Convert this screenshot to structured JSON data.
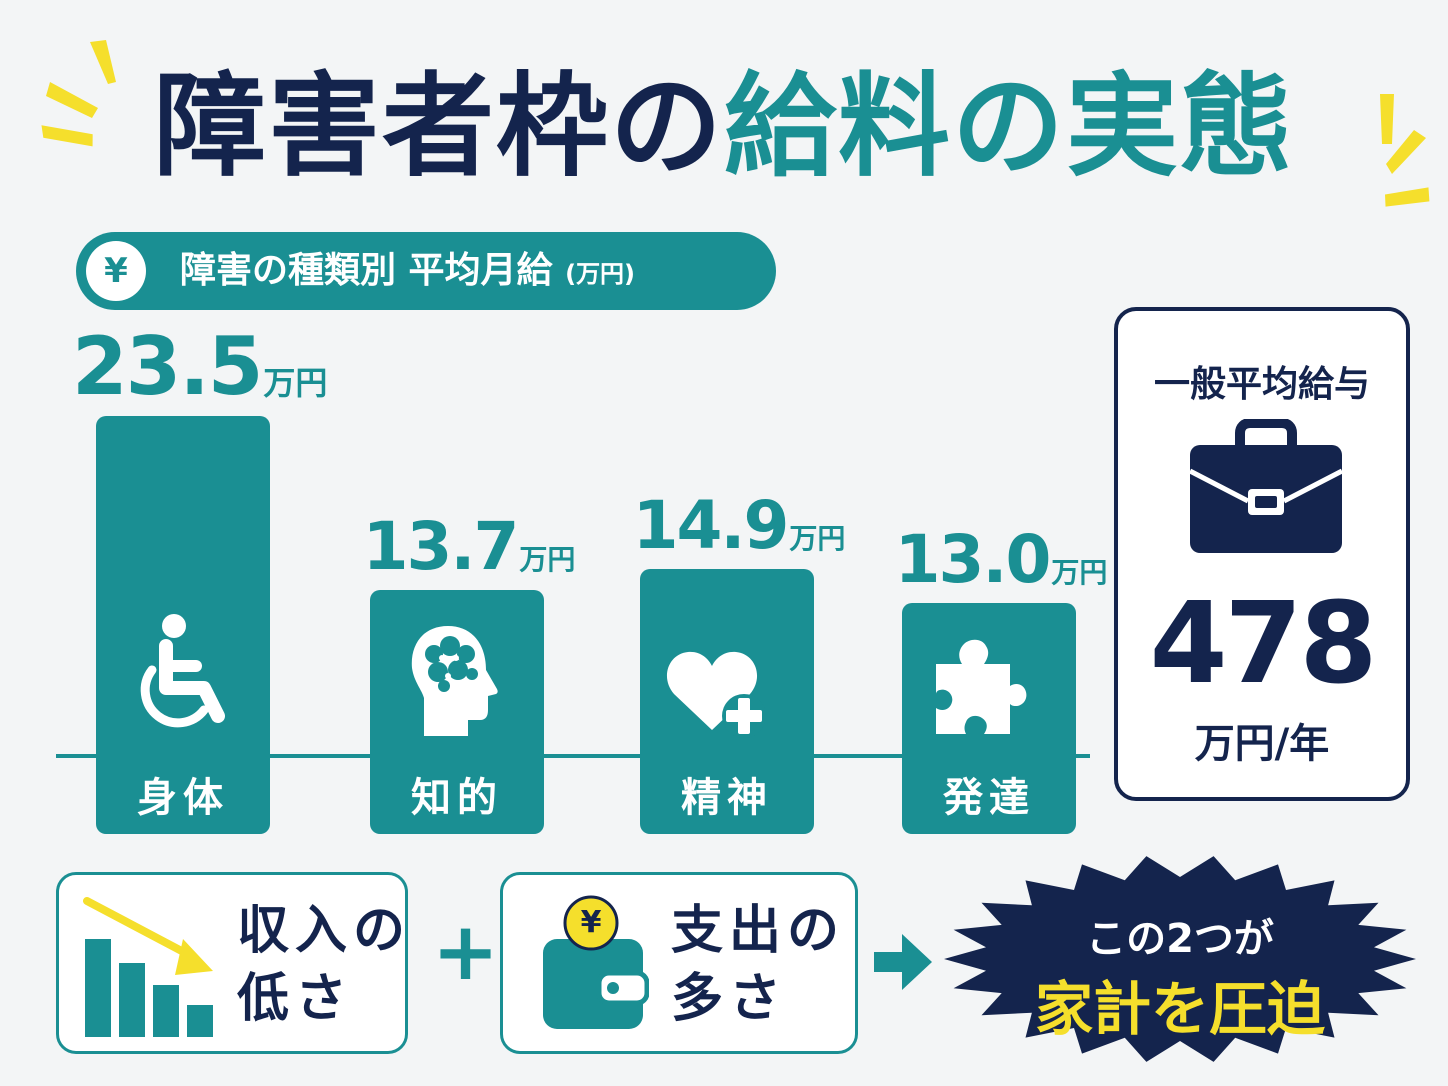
{
  "title": {
    "part1": "障害者枠の",
    "part2": "給料",
    "part3": "の",
    "part4": "実態"
  },
  "subtitle": {
    "yen_symbol": "¥",
    "text": "障害の種類別 平均月給",
    "unit": "(万円)"
  },
  "chart_data": {
    "type": "bar",
    "title": "障害の種類別 平均月給(万円)",
    "categories": [
      "身体",
      "知的",
      "精神",
      "発達"
    ],
    "values": [
      23.5,
      13.7,
      14.9,
      13.0
    ],
    "value_unit": "万円",
    "icons": [
      "wheelchair-icon",
      "head-brain-icon",
      "heart-plus-icon",
      "puzzle-icon"
    ]
  },
  "general": {
    "title": "一般平均給与",
    "value": "478",
    "unit": "万円/年",
    "icon": "briefcase-icon"
  },
  "bottom": {
    "cause1": {
      "line1": "収入の",
      "line2": "低さ",
      "icon": "declining-bar-chart-icon"
    },
    "plus": "+",
    "cause2": {
      "line1": "支出の",
      "line2": "多さ",
      "icon": "wallet-coin-icon",
      "coin_symbol": "¥"
    },
    "result": {
      "line1": "この2つが",
      "line2": "家計を圧迫"
    }
  },
  "colors": {
    "teal": "#1a8f93",
    "navy": "#14244d",
    "yellow": "#f5df2c",
    "background": "#f3f5f6"
  }
}
